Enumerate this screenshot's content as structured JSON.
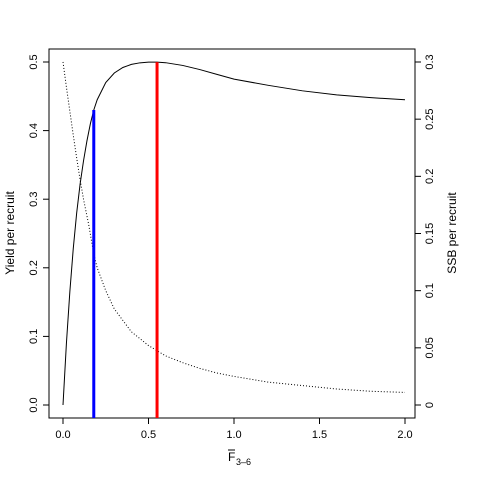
{
  "chart_data": {
    "type": "line",
    "xlabel_main": "F",
    "xlabel_sub": "3–6",
    "ylabel_left": "Yield per recruit",
    "ylabel_right": "SSB per recruit",
    "xlim": [
      0,
      2.0
    ],
    "ylim_left": [
      0,
      0.5
    ],
    "ylim_right": [
      0,
      0.3
    ],
    "x_ticks": [
      0.0,
      0.5,
      1.0,
      1.5,
      2.0
    ],
    "x_tick_labels": [
      "0.0",
      "0.5",
      "1.0",
      "1.5",
      "2.0"
    ],
    "y_left_ticks": [
      0.0,
      0.1,
      0.2,
      0.3,
      0.4,
      0.5
    ],
    "y_left_tick_labels": [
      "0.0",
      "0.1",
      "0.2",
      "0.3",
      "0.4",
      "0.5"
    ],
    "y_right_ticks": [
      0,
      0.05,
      0.1,
      0.15,
      0.2,
      0.25,
      0.3
    ],
    "y_right_tick_labels": [
      "0",
      "0.05",
      "0.1",
      "0.15",
      "0.2",
      "0.25",
      "0.3"
    ],
    "grid": false,
    "series": [
      {
        "axis": "left",
        "style": "solid",
        "color": "#000000",
        "x": [
          0,
          0.02,
          0.04,
          0.06,
          0.08,
          0.1,
          0.12,
          0.14,
          0.16,
          0.18,
          0.2,
          0.25,
          0.3,
          0.35,
          0.4,
          0.45,
          0.5,
          0.55,
          0.6,
          0.7,
          0.8,
          0.9,
          1.0,
          1.2,
          1.4,
          1.6,
          1.8,
          2.0
        ],
        "y": [
          0,
          0.09,
          0.165,
          0.228,
          0.28,
          0.322,
          0.356,
          0.385,
          0.41,
          0.43,
          0.445,
          0.47,
          0.484,
          0.492,
          0.4965,
          0.4988,
          0.4998,
          0.4999,
          0.499,
          0.495,
          0.489,
          0.482,
          0.475,
          0.466,
          0.458,
          0.452,
          0.448,
          0.445
        ]
      },
      {
        "axis": "right",
        "style": "dotted",
        "color": "#000000",
        "x": [
          0,
          0.02,
          0.04,
          0.06,
          0.08,
          0.1,
          0.12,
          0.15,
          0.18,
          0.2,
          0.25,
          0.3,
          0.4,
          0.5,
          0.6,
          0.7,
          0.8,
          0.9,
          1.0,
          1.2,
          1.4,
          1.6,
          1.8,
          2.0
        ],
        "y": [
          0.3,
          0.278,
          0.257,
          0.236,
          0.216,
          0.197,
          0.18,
          0.158,
          0.132,
          0.12,
          0.1,
          0.084,
          0.064,
          0.052,
          0.043,
          0.037,
          0.032,
          0.028,
          0.025,
          0.02,
          0.017,
          0.014,
          0.012,
          0.011
        ]
      }
    ],
    "reference_lines": [
      {
        "name": "blue-vertical",
        "x": 0.18,
        "y_top": 0.43,
        "color": "#0000ff"
      },
      {
        "name": "red-vertical",
        "x": 0.55,
        "y_top": 0.4999,
        "color": "#ff0000"
      }
    ]
  }
}
